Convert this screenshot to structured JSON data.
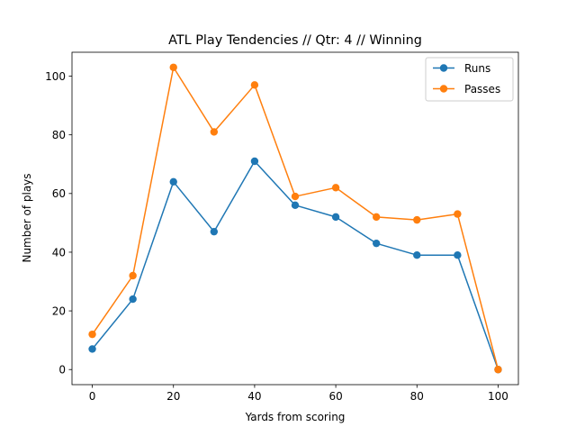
{
  "chart_data": {
    "type": "line",
    "title": "ATL Play Tendencies // Qtr: 4 // Winning",
    "xlabel": "Yards from scoring",
    "ylabel": "Number of plays",
    "x": [
      0,
      10,
      20,
      30,
      40,
      50,
      60,
      70,
      80,
      90,
      100
    ],
    "xlim": [
      -5,
      105
    ],
    "ylim": [
      -5.15,
      108.15
    ],
    "xticks": [
      0,
      20,
      40,
      60,
      80,
      100
    ],
    "yticks": [
      0,
      20,
      40,
      60,
      80,
      100
    ],
    "grid": false,
    "legend_position": "top-right",
    "series": [
      {
        "name": "Runs",
        "color": "#1f77b4",
        "values": [
          7,
          24,
          64,
          47,
          71,
          56,
          52,
          43,
          39,
          39,
          0
        ]
      },
      {
        "name": "Passes",
        "color": "#ff7f0e",
        "values": [
          12,
          32,
          103,
          81,
          97,
          59,
          62,
          52,
          51,
          53,
          0
        ]
      }
    ]
  }
}
